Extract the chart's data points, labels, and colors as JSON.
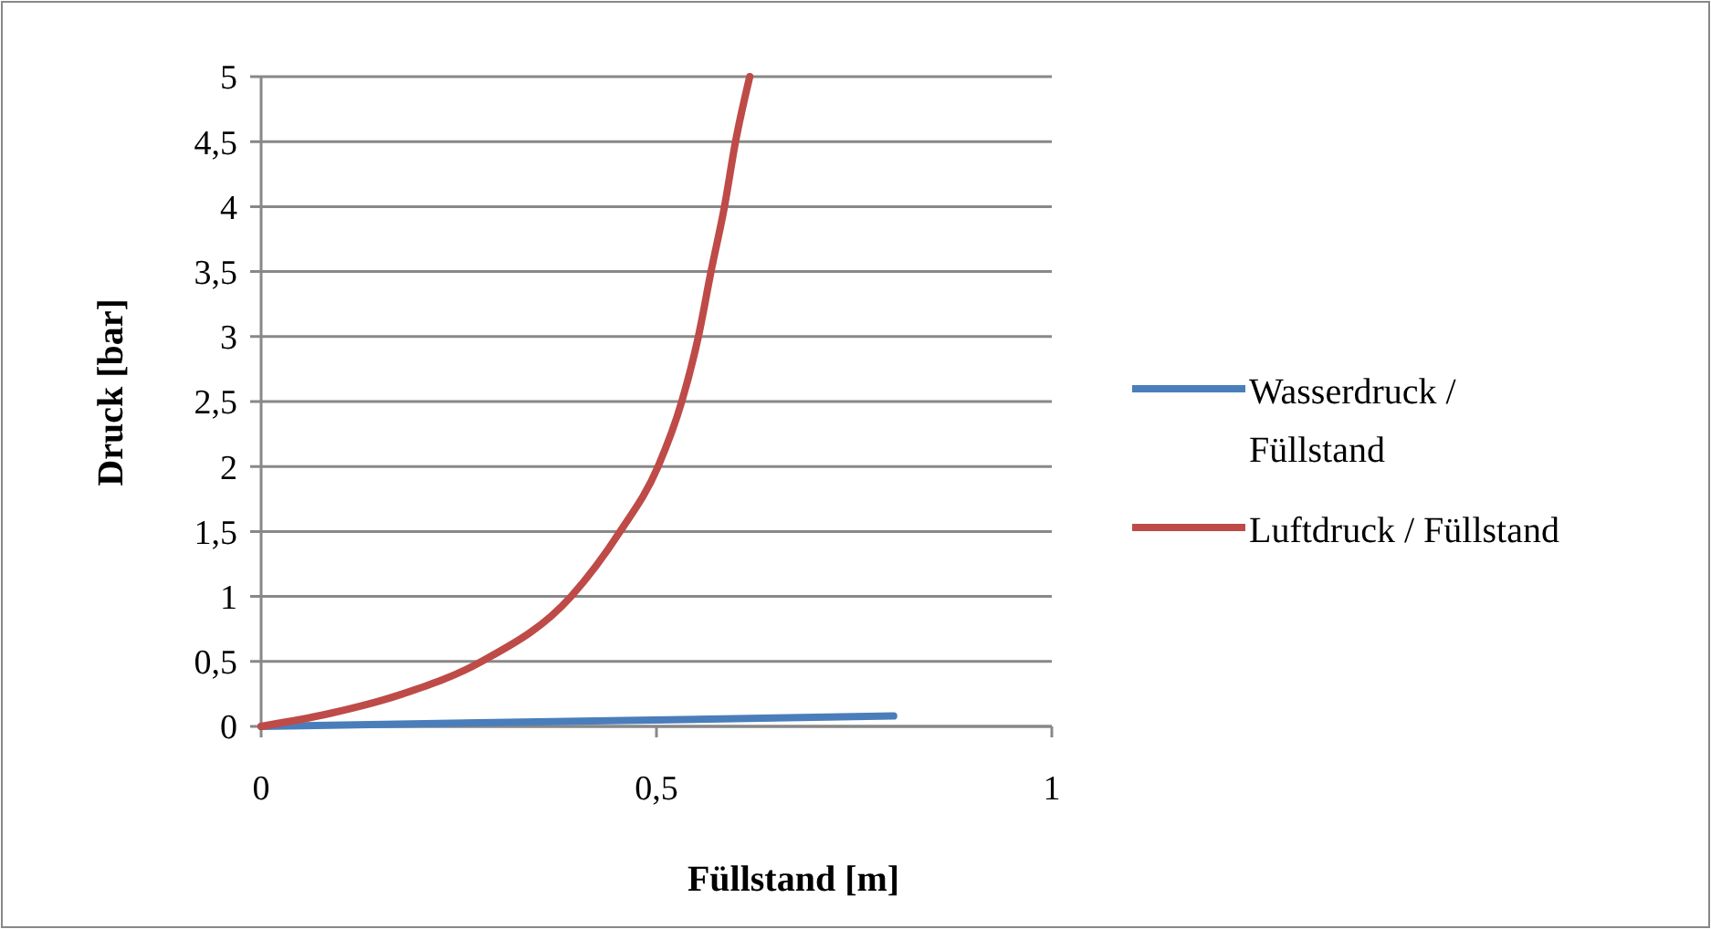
{
  "chart_data": {
    "type": "line",
    "xlabel": "Füllstand [m]",
    "ylabel": "Druck [bar]",
    "xlim": [
      0,
      1
    ],
    "xticks": [
      0,
      {
        "value": 0.5,
        "label": "0,5"
      },
      1
    ],
    "ylim": [
      0,
      5
    ],
    "yticks": [
      0,
      {
        "value": 0.5,
        "label": "0,5"
      },
      1,
      {
        "value": 1.5,
        "label": "1,5"
      },
      2,
      {
        "value": 2.5,
        "label": "2,5"
      },
      3,
      {
        "value": 3.5,
        "label": "3,5"
      },
      4,
      {
        "value": 4.5,
        "label": "4,5"
      },
      5
    ],
    "grid": "y",
    "legend": "right",
    "marker": "none",
    "line_style": "solid",
    "series": [
      {
        "name": "Wasserdruck / Füllstand",
        "color": "#4a7ebb",
        "x": [
          0,
          0.8
        ],
        "values": [
          0,
          0.08
        ]
      },
      {
        "name": "Luftdruck / Füllstand",
        "color": "#be4b48",
        "x": [
          0,
          0.087,
          0.179,
          0.279,
          0.392,
          0.454,
          0.502,
          0.532,
          0.553,
          0.569,
          0.586,
          0.6,
          0.618
        ],
        "values": [
          0,
          0.1,
          0.25,
          0.5,
          1,
          1.5,
          2,
          2.5,
          3,
          3.5,
          4,
          4.5,
          5
        ]
      }
    ]
  }
}
